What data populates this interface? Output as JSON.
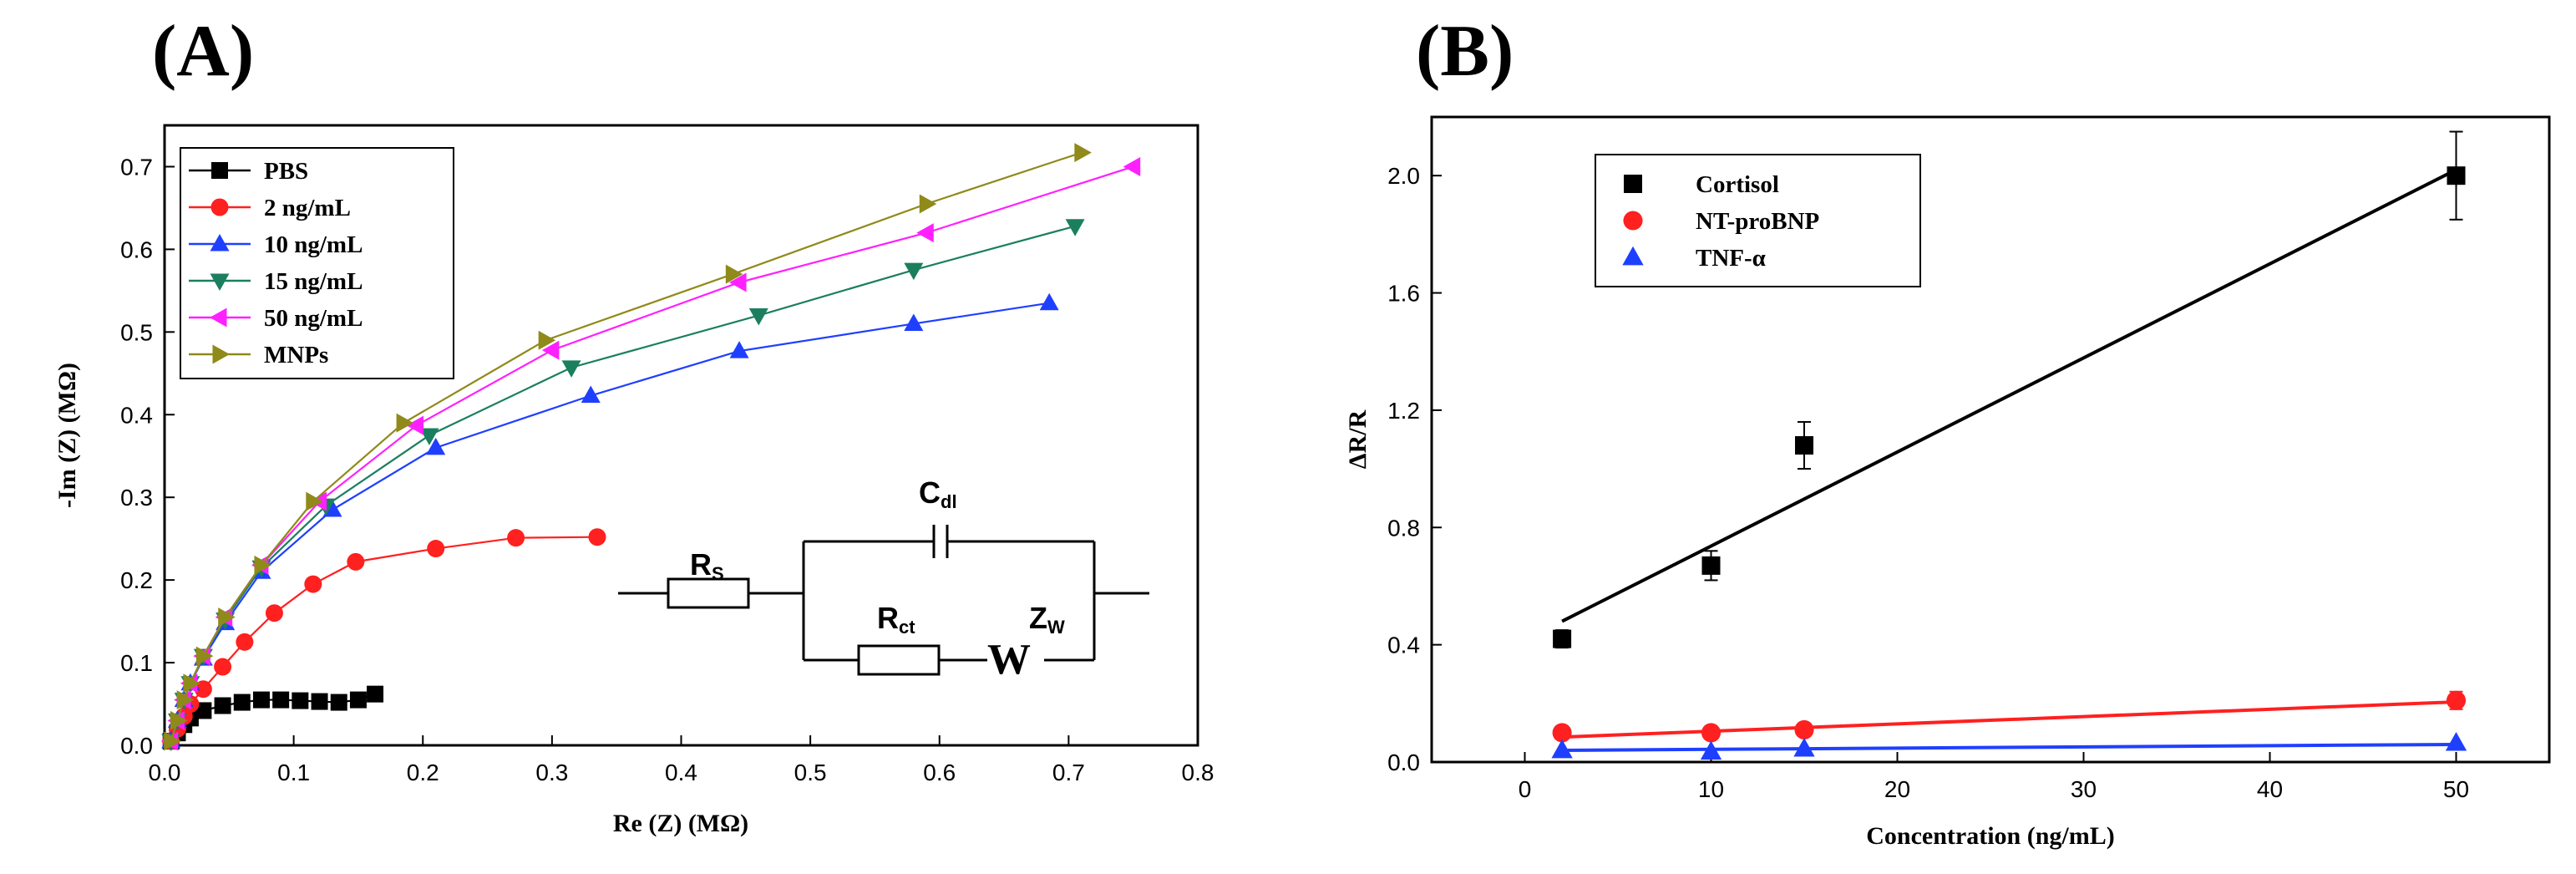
{
  "chart_data": [
    {
      "panel": "(A)",
      "type": "line",
      "xlabel": "Re (Z) (MΩ)",
      "ylabel": "-Im (Z) (MΩ)",
      "xlim": [
        0.0,
        0.8
      ],
      "ylim": [
        0.0,
        0.75
      ],
      "xticks": [
        "0.0",
        "0.1",
        "0.2",
        "0.3",
        "0.4",
        "0.5",
        "0.6",
        "0.7",
        "0.8"
      ],
      "yticks": [
        "0.0",
        "0.1",
        "0.2",
        "0.3",
        "0.4",
        "0.5",
        "0.6",
        "0.7"
      ],
      "legend_position": "top-left",
      "series": [
        {
          "name": "PBS",
          "color": "#000000",
          "marker": "square",
          "x": [
            0.005,
            0.01,
            0.015,
            0.02,
            0.03,
            0.045,
            0.06,
            0.075,
            0.09,
            0.105,
            0.12,
            0.135,
            0.15,
            0.163
          ],
          "y": [
            0.005,
            0.015,
            0.025,
            0.033,
            0.042,
            0.048,
            0.052,
            0.055,
            0.055,
            0.054,
            0.053,
            0.052,
            0.055,
            0.062
          ]
        },
        {
          "name": "2 ng/mL",
          "color": "#ff2020",
          "marker": "circle",
          "x": [
            0.005,
            0.01,
            0.015,
            0.02,
            0.03,
            0.045,
            0.062,
            0.085,
            0.115,
            0.148,
            0.21,
            0.272,
            0.335
          ],
          "y": [
            0.005,
            0.02,
            0.035,
            0.05,
            0.068,
            0.095,
            0.125,
            0.16,
            0.195,
            0.222,
            0.238,
            0.251,
            0.252
          ]
        },
        {
          "name": "10 ng/mL",
          "color": "#1f3fff",
          "marker": "triangle-up",
          "x": [
            0.005,
            0.01,
            0.015,
            0.02,
            0.03,
            0.047,
            0.075,
            0.13,
            0.21,
            0.33,
            0.445,
            0.58,
            0.685
          ],
          "y": [
            0.005,
            0.03,
            0.055,
            0.075,
            0.105,
            0.148,
            0.21,
            0.285,
            0.36,
            0.423,
            0.477,
            0.51,
            0.535
          ]
        },
        {
          "name": "15 ng/mL",
          "color": "#1b7f5f",
          "marker": "triangle-down",
          "x": [
            0.005,
            0.01,
            0.015,
            0.02,
            0.03,
            0.047,
            0.075,
            0.125,
            0.205,
            0.315,
            0.46,
            0.58,
            0.705
          ],
          "y": [
            0.005,
            0.03,
            0.055,
            0.075,
            0.108,
            0.152,
            0.215,
            0.29,
            0.375,
            0.457,
            0.52,
            0.575,
            0.628
          ]
        },
        {
          "name": "50 ng/mL",
          "color": "#ff20ff",
          "marker": "triangle-left",
          "x": [
            0.005,
            0.01,
            0.015,
            0.02,
            0.03,
            0.047,
            0.075,
            0.12,
            0.195,
            0.3,
            0.445,
            0.59,
            0.75
          ],
          "y": [
            0.005,
            0.03,
            0.055,
            0.075,
            0.108,
            0.155,
            0.218,
            0.295,
            0.387,
            0.478,
            0.56,
            0.62,
            0.7
          ]
        },
        {
          "name": "MNPs",
          "color": "#8f8a1a",
          "marker": "triangle-right",
          "x": [
            0.005,
            0.01,
            0.015,
            0.02,
            0.03,
            0.047,
            0.075,
            0.115,
            0.185,
            0.295,
            0.44,
            0.59,
            0.71
          ],
          "y": [
            0.005,
            0.03,
            0.055,
            0.075,
            0.108,
            0.155,
            0.218,
            0.295,
            0.39,
            0.49,
            0.57,
            0.655,
            0.717
          ]
        }
      ],
      "inset_circuit": {
        "rs": "R",
        "rs_sub": "S",
        "cdl": "C",
        "cdl_sub": "dl",
        "rct": "R",
        "rct_sub": "ct",
        "zw": "Z",
        "zw_sub": "W",
        "w": "W"
      }
    },
    {
      "panel": "(B)",
      "type": "scatter",
      "xlabel": "Concentration (ng/mL)",
      "ylabel": "ΔR/R",
      "xlim": [
        -5,
        55
      ],
      "ylim": [
        0.0,
        2.2
      ],
      "xticks": [
        "0",
        "10",
        "20",
        "30",
        "40",
        "50"
      ],
      "yticks": [
        "0.0",
        "0.4",
        "0.8",
        "1.2",
        "1.6",
        "2.0"
      ],
      "legend_position": "top-left",
      "series": [
        {
          "name": "Cortisol",
          "color": "#000000",
          "marker": "square",
          "x": [
            2,
            10,
            15,
            50
          ],
          "y": [
            0.42,
            0.67,
            1.08,
            2.0
          ],
          "err": [
            0.03,
            0.05,
            0.08,
            0.15
          ],
          "fit": [
            0.48,
            2.02
          ]
        },
        {
          "name": "NT-proBNP",
          "color": "#ff2020",
          "marker": "circle",
          "x": [
            2,
            10,
            15,
            50
          ],
          "y": [
            0.1,
            0.1,
            0.11,
            0.21
          ],
          "err": [
            0.01,
            0.01,
            0.01,
            0.03
          ],
          "fit": [
            0.085,
            0.205
          ]
        },
        {
          "name": "TNF-α",
          "color": "#1f3fff",
          "marker": "triangle-up",
          "x": [
            2,
            10,
            15,
            50
          ],
          "y": [
            0.04,
            0.035,
            0.045,
            0.065
          ],
          "err": [
            0.0,
            0.0,
            0.0,
            0.0
          ],
          "fit": [
            0.04,
            0.06
          ]
        }
      ]
    }
  ]
}
